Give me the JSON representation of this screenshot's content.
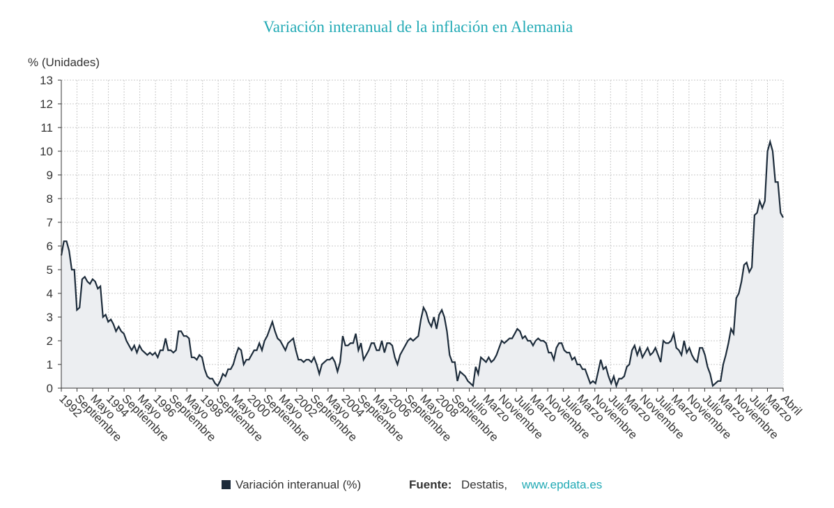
{
  "chart_data": {
    "type": "line",
    "title": "Variación interanual de la inflación en Alemania",
    "y_label": "% (Unidades)",
    "ylim": [
      0,
      13
    ],
    "yticks": [
      0,
      1,
      2,
      3,
      4,
      5,
      6,
      7,
      8,
      9,
      10,
      11,
      12,
      13
    ],
    "grid": true,
    "x_labels": [
      "1992",
      "Septiembre",
      "Mayo",
      "1994",
      "Septiembre",
      "Mayo",
      "1996",
      "Septiembre",
      "Mayo",
      "1998",
      "Septiembre",
      "Mayo",
      "2000",
      "Septiembre",
      "Mayo",
      "2002",
      "Septiembre",
      "Mayo",
      "2004",
      "Septiembre",
      "Mayo",
      "2006",
      "Septiembre",
      "Mayo",
      "2008",
      "Septiembre",
      "Julio",
      "Marzo",
      "Noviembre",
      "Julio",
      "Marzo",
      "Noviembre",
      "Julio",
      "Marzo",
      "Noviembre",
      "Julio",
      "Marzo",
      "Noviembre",
      "Julio",
      "Marzo",
      "Noviembre",
      "Julio",
      "Marzo",
      "Noviembre",
      "Julio",
      "Marzo",
      "Abril"
    ],
    "series": [
      {
        "name": "Variación interanual (%)",
        "color": "#1c2b3a",
        "fill": "#eceef1",
        "values": [
          5.6,
          6.2,
          6.2,
          5.8,
          5.0,
          5.0,
          3.3,
          3.4,
          4.6,
          4.7,
          4.5,
          4.4,
          4.6,
          4.5,
          4.2,
          4.3,
          3.0,
          3.1,
          2.8,
          2.9,
          2.7,
          2.4,
          2.6,
          2.4,
          2.3,
          2.0,
          1.8,
          1.6,
          1.8,
          1.5,
          1.8,
          1.6,
          1.5,
          1.4,
          1.5,
          1.4,
          1.5,
          1.3,
          1.6,
          1.6,
          2.1,
          1.6,
          1.6,
          1.5,
          1.6,
          2.4,
          2.4,
          2.2,
          2.2,
          2.1,
          1.3,
          1.3,
          1.2,
          1.4,
          1.3,
          0.8,
          0.5,
          0.4,
          0.4,
          0.2,
          0.1,
          0.3,
          0.6,
          0.5,
          0.8,
          0.8,
          1.0,
          1.4,
          1.7,
          1.6,
          1.0,
          1.2,
          1.2,
          1.4,
          1.6,
          1.6,
          1.9,
          1.6,
          2.0,
          2.2,
          2.5,
          2.8,
          2.4,
          2.1,
          2.0,
          1.8,
          1.6,
          1.9,
          2.0,
          2.1,
          1.6,
          1.2,
          1.2,
          1.1,
          1.2,
          1.2,
          1.1,
          1.3,
          1.0,
          0.6,
          1.0,
          1.1,
          1.2,
          1.2,
          1.3,
          1.1,
          0.7,
          1.1,
          2.2,
          1.8,
          1.8,
          1.9,
          1.9,
          2.3,
          1.6,
          1.9,
          1.2,
          1.4,
          1.6,
          1.9,
          1.9,
          1.6,
          1.6,
          2.0,
          1.5,
          1.9,
          1.9,
          1.8,
          1.3,
          1.0,
          1.4,
          1.6,
          1.8,
          2.0,
          2.1,
          2.0,
          2.1,
          2.2,
          2.9,
          3.4,
          3.2,
          2.8,
          2.6,
          3.0,
          2.5,
          3.1,
          3.3,
          3.0,
          2.4,
          1.4,
          1.1,
          1.1,
          0.3,
          0.7,
          0.6,
          0.5,
          0.3,
          0.2,
          0.1,
          0.9,
          0.6,
          1.3,
          1.2,
          1.1,
          1.3,
          1.1,
          1.2,
          1.4,
          1.7,
          2.0,
          1.9,
          2.0,
          2.1,
          2.1,
          2.3,
          2.5,
          2.4,
          2.1,
          2.2,
          2.0,
          2.0,
          1.8,
          2.0,
          2.1,
          2.0,
          2.0,
          1.9,
          1.5,
          1.5,
          1.2,
          1.7,
          1.9,
          1.9,
          1.6,
          1.5,
          1.5,
          1.2,
          1.3,
          1.0,
          1.0,
          0.8,
          0.8,
          0.5,
          0.2,
          0.3,
          0.2,
          0.7,
          1.2,
          0.8,
          0.9,
          0.5,
          0.2,
          0.5,
          0.1,
          0.4,
          0.4,
          0.5,
          0.9,
          1.0,
          1.6,
          1.8,
          1.4,
          1.7,
          1.3,
          1.5,
          1.7,
          1.4,
          1.5,
          1.7,
          1.4,
          1.1,
          2.0,
          1.9,
          1.9,
          2.0,
          2.3,
          1.7,
          1.6,
          1.4,
          2.0,
          1.5,
          1.7,
          1.4,
          1.2,
          1.1,
          1.7,
          1.7,
          1.4,
          0.9,
          0.6,
          0.1,
          0.2,
          0.3,
          0.3,
          1.0,
          1.4,
          1.9,
          2.5,
          2.3,
          3.8,
          4.0,
          4.5,
          5.2,
          5.3,
          4.9,
          5.1,
          7.3,
          7.4,
          7.9,
          7.6,
          7.9,
          10.0,
          10.4,
          10.0,
          8.7,
          8.7,
          7.4,
          7.2
        ]
      }
    ],
    "source_label": "Fuente:",
    "source": "Destatis,",
    "source_link": "www.epdata.es"
  }
}
